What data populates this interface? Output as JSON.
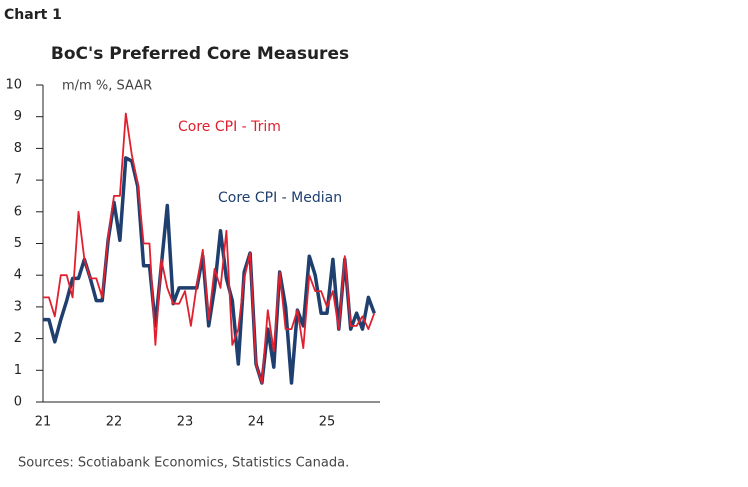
{
  "label": "Chart 1",
  "chart_data": {
    "type": "line",
    "title": "BoC's Preferred Core Measures",
    "y_label": "m/m %, SAAR",
    "source": "Sources: Scotiabank Economics, Statistics Canada.",
    "categories": [
      "21",
      null,
      null,
      null,
      null,
      null,
      null,
      null,
      null,
      null,
      null,
      null,
      "22",
      null,
      null,
      null,
      null,
      null,
      null,
      null,
      null,
      null,
      null,
      null,
      "23",
      null,
      null,
      null,
      null,
      null,
      null,
      null,
      null,
      null,
      null,
      null,
      "24",
      null,
      null,
      null,
      null,
      null,
      null,
      null,
      null,
      null,
      null,
      null,
      "25",
      null,
      null,
      null,
      null,
      null,
      null,
      null,
      null
    ],
    "series": [
      {
        "name": "Core CPI - Trim",
        "color": "#e0202e",
        "values": [
          3.3,
          3.3,
          2.7,
          4.0,
          4.0,
          3.3,
          6.0,
          4.5,
          3.9,
          3.9,
          3.3,
          5.2,
          6.5,
          6.5,
          9.1,
          7.8,
          6.9,
          5.0,
          5.0,
          1.8,
          4.5,
          3.6,
          3.1,
          3.1,
          3.5,
          2.4,
          3.7,
          4.8,
          2.6,
          4.2,
          3.6,
          5.4,
          1.8,
          2.3,
          3.9,
          4.7,
          1.2,
          0.6,
          2.9,
          1.6,
          4.1,
          2.3,
          2.3,
          2.9,
          1.7,
          4.0,
          3.5,
          3.5,
          3.0,
          3.5,
          2.3,
          4.6,
          2.4,
          2.4,
          2.7,
          2.3,
          2.8
        ]
      },
      {
        "name": "Core CPI - Median",
        "color": "#1f3f6e",
        "values": [
          2.6,
          2.6,
          1.9,
          2.6,
          3.2,
          3.9,
          3.9,
          4.5,
          3.9,
          3.2,
          3.2,
          5.1,
          6.3,
          5.1,
          7.7,
          7.6,
          6.8,
          4.3,
          4.3,
          2.4,
          4.3,
          6.2,
          3.1,
          3.6,
          3.6,
          3.6,
          3.6,
          4.6,
          2.4,
          3.6,
          5.4,
          3.9,
          3.2,
          1.2,
          4.1,
          4.7,
          1.2,
          0.6,
          2.3,
          1.1,
          4.1,
          3.0,
          0.6,
          2.9,
          2.4,
          4.6,
          4.0,
          2.8,
          2.8,
          4.5,
          2.3,
          4.5,
          2.3,
          2.8,
          2.3,
          3.3,
          2.8
        ]
      }
    ],
    "ylim": [
      0,
      10
    ],
    "yticks": [
      0,
      1,
      2,
      3,
      4,
      5,
      6,
      7,
      8,
      9,
      10
    ],
    "grid": false
  }
}
